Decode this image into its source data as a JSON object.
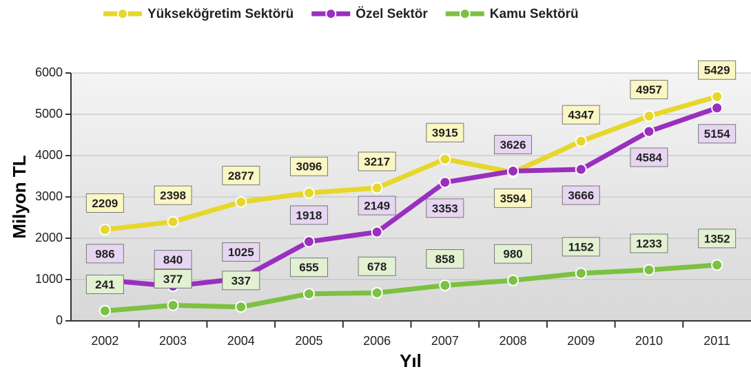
{
  "chart_data": {
    "type": "line",
    "x_label": "Yıl",
    "y_label": "Milyon TL",
    "categories": [
      "2002",
      "2003",
      "2004",
      "2005",
      "2006",
      "2007",
      "2008",
      "2009",
      "2010",
      "2011"
    ],
    "series": [
      {
        "name": "Yükseköğretim Sektörü",
        "color": "#e6d72a",
        "values": [
          2209,
          2398,
          2877,
          3096,
          3217,
          3915,
          3594,
          4347,
          4957,
          5429
        ]
      },
      {
        "name": "Özel Sektör",
        "color": "#9a2fbf",
        "values": [
          986,
          840,
          1025,
          1918,
          2149,
          3353,
          3626,
          3666,
          4584,
          5154
        ]
      },
      {
        "name": "Kamu Sektörü",
        "color": "#7cc142",
        "values": [
          241,
          377,
          337,
          655,
          678,
          858,
          980,
          1152,
          1233,
          1352
        ]
      }
    ],
    "ylim": [
      0,
      6000
    ],
    "yticks": [
      0,
      1000,
      2000,
      3000,
      4000,
      5000,
      6000
    ],
    "grid": true,
    "legend": "top"
  }
}
